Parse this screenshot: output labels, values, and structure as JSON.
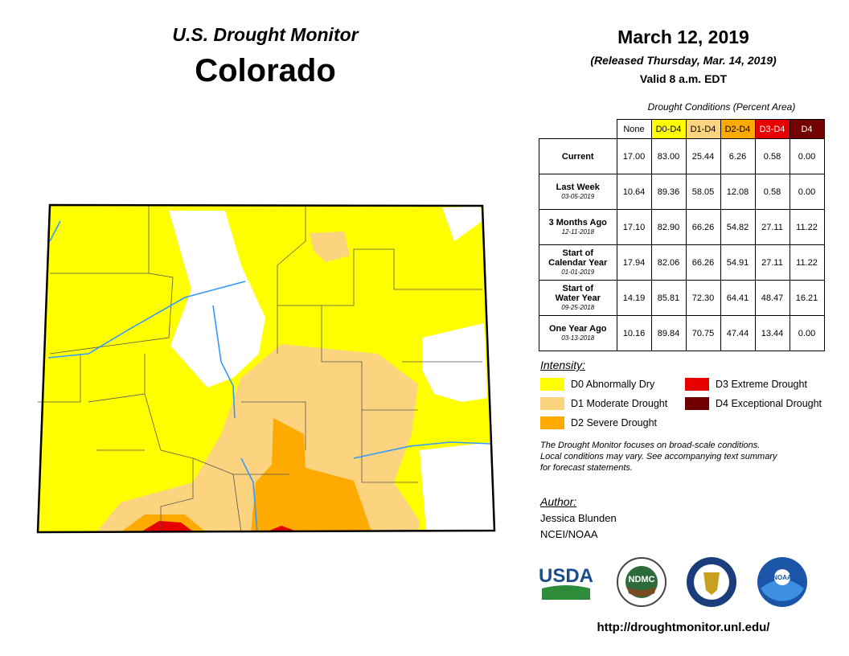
{
  "header": {
    "program": "U.S. Drought Monitor",
    "state": "Colorado",
    "date": "March 12, 2019",
    "released": "(Released Thursday, Mar. 14, 2019)",
    "valid": "Valid 8 a.m. EDT"
  },
  "table": {
    "caption": "Drought Conditions (Percent Area)",
    "columns": [
      {
        "label": "None",
        "color": "#ffffff",
        "text_color": "#000000"
      },
      {
        "label": "D0-D4",
        "color": "#ffff00",
        "text_color": "#000000"
      },
      {
        "label": "D1-D4",
        "color": "#fcd37f",
        "text_color": "#000000"
      },
      {
        "label": "D2-D4",
        "color": "#ffaa00",
        "text_color": "#000000"
      },
      {
        "label": "D3-D4",
        "color": "#e60000",
        "text_color": "#ffffff"
      },
      {
        "label": "D4",
        "color": "#730000",
        "text_color": "#ffffff"
      }
    ],
    "rows": [
      {
        "label": [
          "Current"
        ],
        "values": [
          "17.00",
          "83.00",
          "25.44",
          "6.26",
          "0.58",
          "0.00"
        ]
      },
      {
        "label": [
          "Last Week"
        ],
        "date": "03-05-2019",
        "values": [
          "10.64",
          "89.36",
          "58.05",
          "12.08",
          "0.58",
          "0.00"
        ]
      },
      {
        "label": [
          "3 Months Ago"
        ],
        "date": "12-11-2018",
        "values": [
          "17.10",
          "82.90",
          "66.26",
          "54.82",
          "27.11",
          "11.22"
        ]
      },
      {
        "label": [
          "Start of",
          "Calendar Year"
        ],
        "date": "01-01-2019",
        "values": [
          "17.94",
          "82.06",
          "66.26",
          "54.91",
          "27.11",
          "11.22"
        ]
      },
      {
        "label": [
          "Start of",
          "Water Year"
        ],
        "date": "09-25-2018",
        "values": [
          "14.19",
          "85.81",
          "72.30",
          "64.41",
          "48.47",
          "16.21"
        ]
      },
      {
        "label": [
          "One Year Ago"
        ],
        "date": "03-13-2018",
        "values": [
          "10.16",
          "89.84",
          "70.75",
          "47.44",
          "13.44",
          "0.00"
        ]
      }
    ]
  },
  "legend": {
    "title": "Intensity:",
    "items": [
      {
        "label": "D0 Abnormally Dry",
        "color": "#ffff00"
      },
      {
        "label": "D1 Moderate Drought",
        "color": "#fcd37f"
      },
      {
        "label": "D2 Severe Drought",
        "color": "#ffaa00"
      },
      {
        "label": "D3 Extreme Drought",
        "color": "#e60000"
      },
      {
        "label": "D4 Exceptional Drought",
        "color": "#730000"
      }
    ]
  },
  "note": [
    "The Drought Monitor focuses on broad-scale conditions.",
    "Local conditions may vary. See accompanying text summary",
    "for forecast statements."
  ],
  "author": {
    "heading": "Author:",
    "name": "Jessica Blunden",
    "org": "NCEI/NOAA"
  },
  "logos": {
    "usda": "USDA",
    "ndmc": "NDMC",
    "noaa": "NOAA"
  },
  "url": "http://droughtmonitor.unl.edu/"
}
